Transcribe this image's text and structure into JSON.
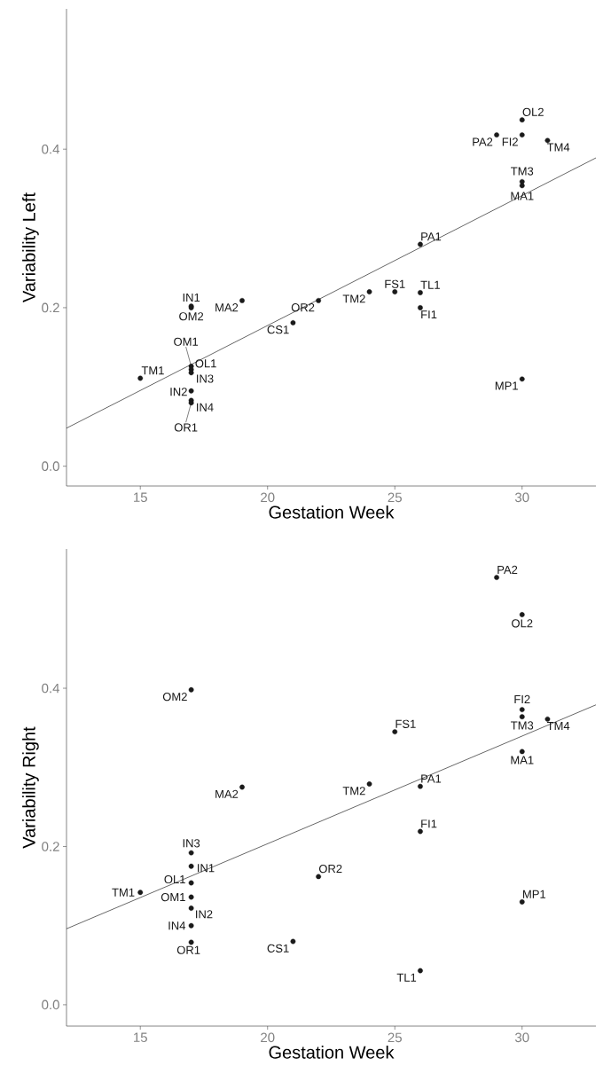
{
  "chart_data": [
    {
      "type": "scatter",
      "xlabel": "Gestation Week",
      "ylabel": "Variability Left",
      "xlim": [
        12.1,
        32.9
      ],
      "ylim": [
        -0.025,
        0.577
      ],
      "xticks": [
        15,
        20,
        25,
        30
      ],
      "yticks": [
        {
          "value": 0,
          "label": "0.0"
        },
        {
          "value": 0.2,
          "label": "0.2"
        },
        {
          "value": 0.4,
          "label": "0.4"
        }
      ],
      "grid": false,
      "series": [
        {
          "type": "scatter",
          "marker": "circle",
          "color": "#1a1a1a",
          "x": [
            15,
            17,
            17,
            19,
            21,
            22,
            17,
            17,
            17,
            17,
            17,
            17,
            24,
            25,
            26,
            26,
            26,
            30,
            30,
            30,
            29,
            30,
            31,
            30
          ],
          "values": [
            0.111,
            0.202,
            0.2,
            0.209,
            0.181,
            0.209,
            0.126,
            0.122,
            0.118,
            0.095,
            0.083,
            0.08,
            0.22,
            0.22,
            0.28,
            0.219,
            0.2,
            0.359,
            0.354,
            0.437,
            0.418,
            0.418,
            0.411,
            0.11
          ]
        },
        {
          "type": "line",
          "color": "#000000",
          "x": [
            12.1,
            32.9
          ],
          "values": [
            0.048,
            0.389
          ]
        }
      ],
      "annotations": [
        {
          "text": "TM1",
          "x": 15,
          "y": 0.111
        },
        {
          "text": "IN1",
          "x": 17,
          "y": 0.202
        },
        {
          "text": "OM2",
          "x": 17,
          "y": 0.2
        },
        {
          "text": "MA2",
          "x": 19,
          "y": 0.209
        },
        {
          "text": "CS1",
          "x": 21,
          "y": 0.181
        },
        {
          "text": "OR2",
          "x": 22,
          "y": 0.209
        },
        {
          "text": "OM1",
          "x": 17,
          "y": 0.126
        },
        {
          "text": "OL1",
          "x": 17,
          "y": 0.122
        },
        {
          "text": "IN3",
          "x": 17,
          "y": 0.118
        },
        {
          "text": "IN2",
          "x": 17,
          "y": 0.095
        },
        {
          "text": "IN4",
          "x": 17,
          "y": 0.083
        },
        {
          "text": "OR1",
          "x": 17,
          "y": 0.08
        },
        {
          "text": "TM2",
          "x": 24,
          "y": 0.22
        },
        {
          "text": "FS1",
          "x": 25,
          "y": 0.22
        },
        {
          "text": "PA1",
          "x": 26,
          "y": 0.28
        },
        {
          "text": "TL1",
          "x": 26,
          "y": 0.219
        },
        {
          "text": "FI1",
          "x": 26,
          "y": 0.2
        },
        {
          "text": "TM3",
          "x": 30,
          "y": 0.359
        },
        {
          "text": "MA1",
          "x": 30,
          "y": 0.354
        },
        {
          "text": "OL2",
          "x": 30,
          "y": 0.437
        },
        {
          "text": "PA2",
          "x": 29,
          "y": 0.418
        },
        {
          "text": "FI2",
          "x": 30,
          "y": 0.418
        },
        {
          "text": "TM4",
          "x": 31,
          "y": 0.411
        },
        {
          "text": "MP1",
          "x": 30,
          "y": 0.11
        }
      ]
    },
    {
      "type": "scatter",
      "xlabel": "Gestation Week",
      "ylabel": "Variability Right",
      "xlim": [
        12.1,
        32.9
      ],
      "ylim": [
        -0.027,
        0.576
      ],
      "xticks": [
        15,
        20,
        25,
        30
      ],
      "yticks": [
        {
          "value": 0,
          "label": "0.0"
        },
        {
          "value": 0.2,
          "label": "0.2"
        },
        {
          "value": 0.4,
          "label": "0.4"
        }
      ],
      "grid": false,
      "series": [
        {
          "type": "scatter",
          "marker": "circle",
          "color": "#1a1a1a",
          "x": [
            15,
            17,
            19,
            17,
            17,
            17,
            17,
            17,
            17,
            17,
            21,
            22,
            24,
            25,
            26,
            26,
            26,
            29,
            30,
            30,
            30,
            31,
            30,
            30
          ],
          "values": [
            0.142,
            0.398,
            0.275,
            0.192,
            0.175,
            0.154,
            0.136,
            0.122,
            0.1,
            0.079,
            0.08,
            0.162,
            0.279,
            0.345,
            0.276,
            0.219,
            0.043,
            0.54,
            0.493,
            0.373,
            0.364,
            0.361,
            0.32,
            0.13
          ]
        },
        {
          "type": "line",
          "color": "#000000",
          "x": [
            12.1,
            32.9
          ],
          "values": [
            0.096,
            0.379
          ]
        }
      ],
      "annotations": [
        {
          "text": "TM1",
          "x": 15,
          "y": 0.142
        },
        {
          "text": "OM2",
          "x": 17,
          "y": 0.398
        },
        {
          "text": "MA2",
          "x": 19,
          "y": 0.275
        },
        {
          "text": "IN3",
          "x": 17,
          "y": 0.192
        },
        {
          "text": "IN1",
          "x": 17,
          "y": 0.175
        },
        {
          "text": "OL1",
          "x": 17,
          "y": 0.154
        },
        {
          "text": "OM1",
          "x": 17,
          "y": 0.136
        },
        {
          "text": "IN2",
          "x": 17,
          "y": 0.122
        },
        {
          "text": "IN4",
          "x": 17,
          "y": 0.1
        },
        {
          "text": "OR1",
          "x": 17,
          "y": 0.079
        },
        {
          "text": "CS1",
          "x": 21,
          "y": 0.08
        },
        {
          "text": "OR2",
          "x": 22,
          "y": 0.162
        },
        {
          "text": "TM2",
          "x": 24,
          "y": 0.279
        },
        {
          "text": "FS1",
          "x": 25,
          "y": 0.345
        },
        {
          "text": "PA1",
          "x": 26,
          "y": 0.276
        },
        {
          "text": "FI1",
          "x": 26,
          "y": 0.219
        },
        {
          "text": "TL1",
          "x": 26,
          "y": 0.043
        },
        {
          "text": "PA2",
          "x": 29,
          "y": 0.54
        },
        {
          "text": "OL2",
          "x": 30,
          "y": 0.493
        },
        {
          "text": "FI2",
          "x": 30,
          "y": 0.373
        },
        {
          "text": "TM3",
          "x": 30,
          "y": 0.364
        },
        {
          "text": "TM4",
          "x": 31,
          "y": 0.361
        },
        {
          "text": "MA1",
          "x": 30,
          "y": 0.32
        },
        {
          "text": "MP1",
          "x": 30,
          "y": 0.13
        }
      ]
    }
  ]
}
